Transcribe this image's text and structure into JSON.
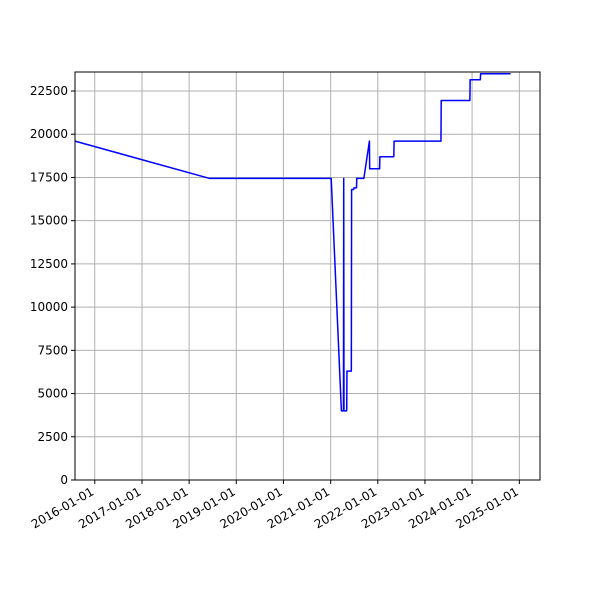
{
  "chart_data": {
    "type": "line",
    "title": "",
    "xlabel": "",
    "ylabel": "",
    "x_axis_kind": "date",
    "xlim": [
      "2015-08-01",
      "2025-06-10"
    ],
    "ylim": [
      0,
      23600
    ],
    "grid": true,
    "legend": "none",
    "colors": {
      "line": "#0000ff",
      "grid": "#b0b0b0",
      "axes": "#000000",
      "background": "#ffffff"
    },
    "x_ticks": [
      "2016-01-01",
      "2017-01-01",
      "2018-01-01",
      "2019-01-01",
      "2020-01-01",
      "2021-01-01",
      "2022-01-01",
      "2023-01-01",
      "2024-01-01",
      "2025-01-01"
    ],
    "y_ticks": [
      0,
      2500,
      5000,
      7500,
      10000,
      12500,
      15000,
      17500,
      20000,
      22500
    ],
    "series": [
      {
        "color": "#0000ff",
        "points": [
          [
            "2015-08-01",
            19600
          ],
          [
            "2018-06-05",
            17450
          ],
          [
            "2021-01-05",
            17450
          ],
          [
            "2021-03-25",
            4000
          ],
          [
            "2021-04-10",
            4000
          ],
          [
            "2021-04-12",
            17450
          ],
          [
            "2021-04-14",
            4000
          ],
          [
            "2021-05-05",
            4000
          ],
          [
            "2021-05-07",
            6300
          ],
          [
            "2021-06-10",
            6300
          ],
          [
            "2021-06-12",
            16800
          ],
          [
            "2021-06-28",
            16800
          ],
          [
            "2021-06-30",
            16900
          ],
          [
            "2021-07-20",
            16900
          ],
          [
            "2021-07-22",
            17450
          ],
          [
            "2021-09-15",
            17450
          ],
          [
            "2021-10-28",
            19600
          ],
          [
            "2021-10-30",
            18000
          ],
          [
            "2022-01-15",
            18000
          ],
          [
            "2022-01-17",
            18700
          ],
          [
            "2022-05-05",
            18700
          ],
          [
            "2022-05-07",
            19600
          ],
          [
            "2023-05-05",
            19600
          ],
          [
            "2023-05-07",
            21950
          ],
          [
            "2023-12-15",
            21950
          ],
          [
            "2023-12-17",
            23150
          ],
          [
            "2024-03-05",
            23150
          ],
          [
            "2024-03-07",
            23500
          ],
          [
            "2024-10-25",
            23500
          ]
        ]
      }
    ]
  }
}
